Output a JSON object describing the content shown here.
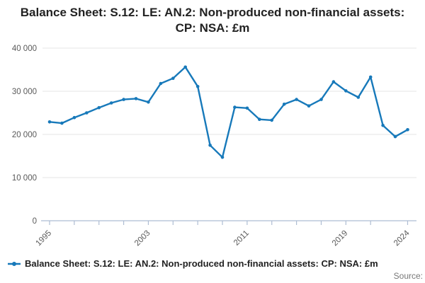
{
  "title": "Balance Sheet: S.12: LE: AN.2: Non-produced non-financial assets: CP: NSA: £m",
  "legend": {
    "label": "Balance Sheet: S.12: LE: AN.2: Non-produced non-financial assets: CP: NSA: £m"
  },
  "footer": {
    "source_label": "Source:"
  },
  "colors": {
    "line": "#1779BA",
    "grid": "#e6e6e6",
    "axis": "#aebdd3",
    "tick_label": "#595959",
    "title_text": "#222222",
    "source_text": "#777777",
    "background": "#ffffff"
  },
  "chart_data": {
    "type": "line",
    "title": "Balance Sheet: S.12: LE: AN.2: Non-produced non-financial assets: CP: NSA: £m",
    "xlabel": "",
    "ylabel": "",
    "x": [
      1995,
      1996,
      1997,
      1998,
      1999,
      2000,
      2001,
      2002,
      2003,
      2004,
      2005,
      2006,
      2007,
      2008,
      2009,
      2010,
      2011,
      2012,
      2013,
      2014,
      2015,
      2016,
      2017,
      2018,
      2019,
      2020,
      2021,
      2022,
      2023,
      2024
    ],
    "series": [
      {
        "name": "Balance Sheet: S.12: LE: AN.2: Non-produced non-financial assets: CP: NSA: £m",
        "values": [
          22900,
          22600,
          23900,
          25000,
          26200,
          27300,
          28100,
          28300,
          27500,
          31800,
          33000,
          35600,
          31100,
          17500,
          14700,
          26300,
          26100,
          23500,
          23300,
          27000,
          28100,
          26600,
          28100,
          32200,
          30100,
          28600,
          33300,
          22100,
          19500,
          21100
        ]
      }
    ],
    "xlim": [
      1995,
      2024
    ],
    "ylim": [
      0,
      40000
    ],
    "y_ticks": [
      {
        "value": 0,
        "label": "0"
      },
      {
        "value": 10000,
        "label": "10 000"
      },
      {
        "value": 20000,
        "label": "20 000"
      },
      {
        "value": 30000,
        "label": "30 000"
      },
      {
        "value": 40000,
        "label": "40 000"
      }
    ],
    "x_ticks": [
      {
        "year": 1995,
        "label": "1995"
      },
      {
        "year": 1997,
        "label": ""
      },
      {
        "year": 1999,
        "label": ""
      },
      {
        "year": 2001,
        "label": ""
      },
      {
        "year": 2003,
        "label": "2003"
      },
      {
        "year": 2005,
        "label": ""
      },
      {
        "year": 2007,
        "label": ""
      },
      {
        "year": 2009,
        "label": ""
      },
      {
        "year": 2011,
        "label": "2011"
      },
      {
        "year": 2013,
        "label": ""
      },
      {
        "year": 2015,
        "label": ""
      },
      {
        "year": 2017,
        "label": ""
      },
      {
        "year": 2019,
        "label": "2019"
      },
      {
        "year": 2021,
        "label": ""
      },
      {
        "year": 2024,
        "label": "2024"
      }
    ],
    "grid": "horizontal-only",
    "legend_position": "bottom-left",
    "markers": true
  }
}
